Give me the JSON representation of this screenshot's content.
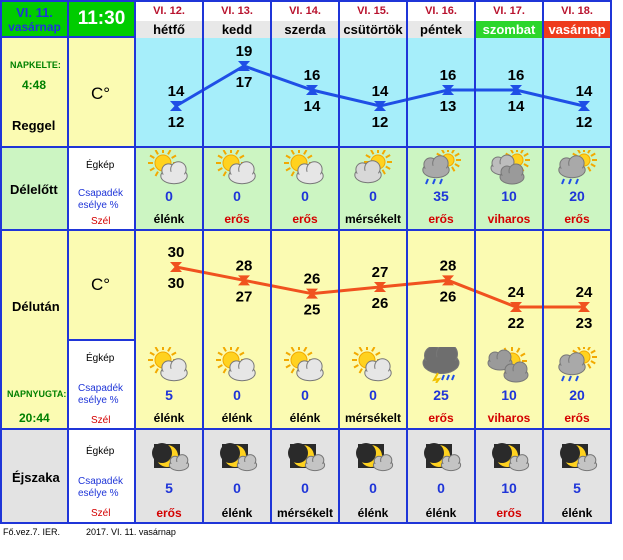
{
  "header": {
    "today_date": "VI. 11.",
    "today_day": "vasárnap",
    "time": "11:30",
    "days": [
      {
        "date": "VI. 12.",
        "name": "hétfő",
        "style": "normal"
      },
      {
        "date": "VI. 13.",
        "name": "kedd",
        "style": "normal"
      },
      {
        "date": "VI. 14.",
        "name": "szerda",
        "style": "normal"
      },
      {
        "date": "VI. 15.",
        "name": "csütörtök",
        "style": "normal"
      },
      {
        "date": "VI. 16.",
        "name": "péntek",
        "style": "normal"
      },
      {
        "date": "VI. 17.",
        "name": "szombat",
        "style": "saturday"
      },
      {
        "date": "VI. 18.",
        "name": "vasárnap",
        "style": "sunday"
      }
    ]
  },
  "colors": {
    "border_blue": "#1f35d8",
    "header_green": "#00cc00",
    "saturday_green": "#2bd62b",
    "sunday_red": "#ee3b1c",
    "morning_bg": "#a6eefa",
    "green_bg": "#ccf5c2",
    "yellow_bg": "#fbfbb2",
    "night_bg": "#e3e3e3",
    "morning_line": "#1f4fe6",
    "afternoon_line": "#f0521f",
    "red_text": "#d40000"
  },
  "morning": {
    "sunrise_label": "NAPKELTE:",
    "sunrise_time": "4:48",
    "section_label": "Reggel",
    "unit": "C°",
    "max": [
      14,
      19,
      16,
      14,
      16,
      16,
      14
    ],
    "min": [
      12,
      17,
      14,
      12,
      13,
      14,
      12
    ]
  },
  "forenoon": {
    "section_label": "Délelőtt",
    "sky_label": "Égkép",
    "precip_label_1": "Csapadék",
    "precip_label_2": "esélye %",
    "wind_label": "Szél",
    "icons": [
      "sun-cloud",
      "sun-cloud",
      "sun-cloud",
      "cloud-sun",
      "rain-cloud",
      "thunder-cloud",
      "rain-cloud"
    ],
    "precip": [
      "0",
      "0",
      "0",
      "0",
      "35",
      "10",
      "20"
    ],
    "wind": [
      {
        "text": "élénk",
        "color": "black"
      },
      {
        "text": "erős",
        "color": "red"
      },
      {
        "text": "erős",
        "color": "red"
      },
      {
        "text": "mérsékelt",
        "color": "black"
      },
      {
        "text": "erős",
        "color": "red"
      },
      {
        "text": "viharos",
        "color": "red"
      },
      {
        "text": "erős",
        "color": "red"
      }
    ]
  },
  "afternoon": {
    "section_label": "Délután",
    "unit": "C°",
    "sunset_label": "NAPNYUGTA:",
    "sunset_time": "20:44",
    "sky_label": "Égkép",
    "precip_label_1": "Csapadék",
    "precip_label_2": "esélye %",
    "wind_label": "Szél",
    "line_values": [
      30,
      28,
      26,
      27,
      28,
      24,
      24
    ],
    "low_values": [
      30,
      27,
      25,
      26,
      26,
      22,
      23
    ],
    "icons": [
      "sun-cloud",
      "sun-cloud",
      "sun-cloud",
      "sun-cloud",
      "storm-cloud",
      "cloud-sun-storm",
      "rain-cloud"
    ],
    "precip": [
      "5",
      "0",
      "0",
      "0",
      "25",
      "10",
      "20"
    ],
    "wind": [
      {
        "text": "élénk",
        "color": "black"
      },
      {
        "text": "élénk",
        "color": "black"
      },
      {
        "text": "élénk",
        "color": "black"
      },
      {
        "text": "mérsékelt",
        "color": "black"
      },
      {
        "text": "erős",
        "color": "red"
      },
      {
        "text": "viharos",
        "color": "red"
      },
      {
        "text": "erős",
        "color": "red"
      }
    ]
  },
  "night": {
    "section_label": "Éjszaka",
    "sky_label": "Égkép",
    "precip_label_1": "Csapadék",
    "precip_label_2": "esélye %",
    "wind_label": "Szél",
    "icons": [
      "moon-cloud",
      "moon-cloud",
      "moon-cloud",
      "moon-cloud",
      "moon-cloud",
      "moon-cloud",
      "moon-cloud"
    ],
    "precip": [
      "5",
      "0",
      "0",
      "0",
      "0",
      "10",
      "5"
    ],
    "wind": [
      {
        "text": "erős",
        "color": "red"
      },
      {
        "text": "élénk",
        "color": "black"
      },
      {
        "text": "mérsékelt",
        "color": "black"
      },
      {
        "text": "élénk",
        "color": "black"
      },
      {
        "text": "élénk",
        "color": "black"
      },
      {
        "text": "erős",
        "color": "red"
      },
      {
        "text": "élénk",
        "color": "black"
      }
    ]
  },
  "footer": {
    "left": "Fő.vez.7. IER.",
    "right": "2017. VI. 11. vasárnap"
  }
}
